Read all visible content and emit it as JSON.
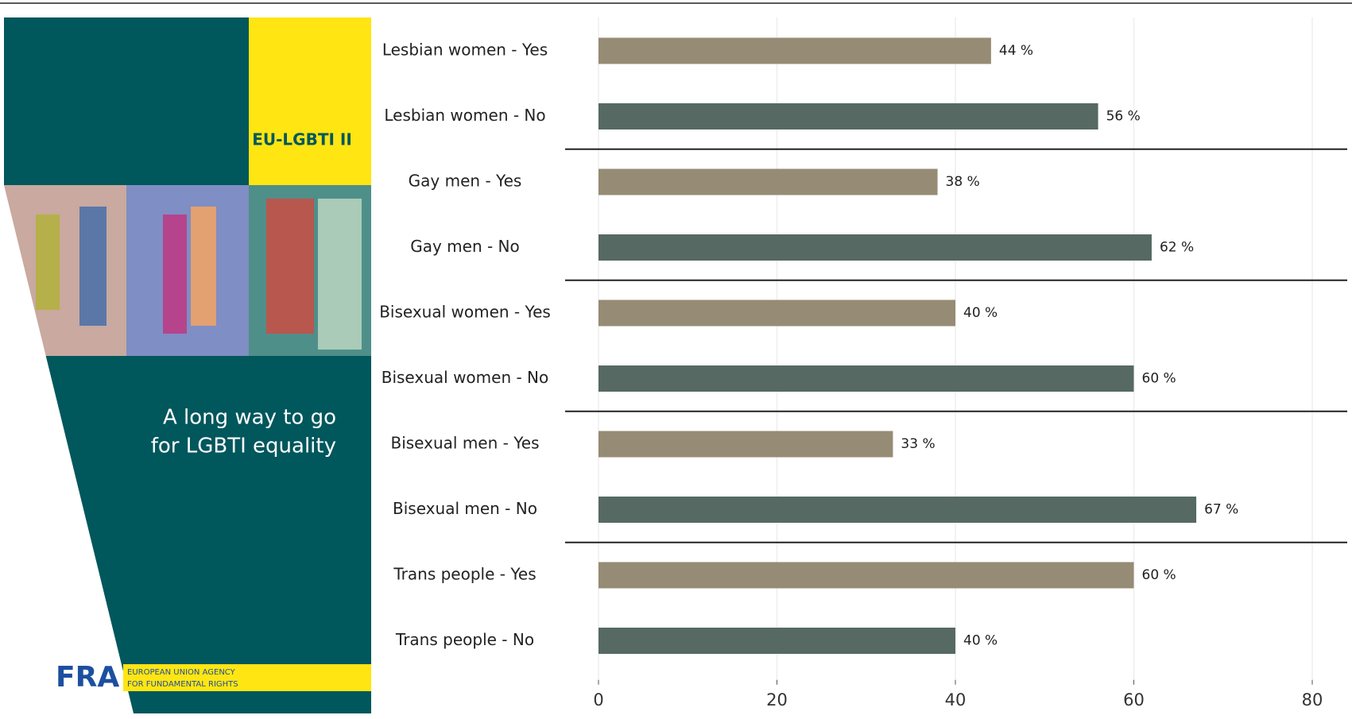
{
  "chart_data": {
    "type": "bar",
    "orientation": "horizontal",
    "categories": [
      "Lesbian women - Yes",
      "Lesbian women - No",
      "Gay men - Yes",
      "Gay men - No",
      "Bisexual women - Yes",
      "Bisexual women - No",
      "Bisexual men - Yes",
      "Bisexual men - No",
      "Trans people - Yes",
      "Trans people - No"
    ],
    "values": [
      44,
      56,
      38,
      62,
      40,
      60,
      33,
      67,
      60,
      40
    ],
    "value_labels": [
      "44 %",
      "56 %",
      "38 %",
      "62 %",
      "40 %",
      "60 %",
      "33 %",
      "67 %",
      "60 %",
      "40 %"
    ],
    "colors": [
      "#968b74",
      "#566962",
      "#968b74",
      "#566962",
      "#968b74",
      "#566962",
      "#968b74",
      "#566962",
      "#968b74",
      "#566962"
    ],
    "xlim": [
      0,
      80
    ],
    "xticks": [
      0,
      20,
      40,
      60,
      80
    ],
    "grid": true
  },
  "cover": {
    "badge": "EU-LGBTI II",
    "title_lines": [
      "A long way to go",
      "for LGBTI equality"
    ],
    "logo": "FRA",
    "agency_lines": [
      "EUROPEAN UNION AGENCY",
      "FOR FUNDAMENTAL RIGHTS"
    ]
  }
}
